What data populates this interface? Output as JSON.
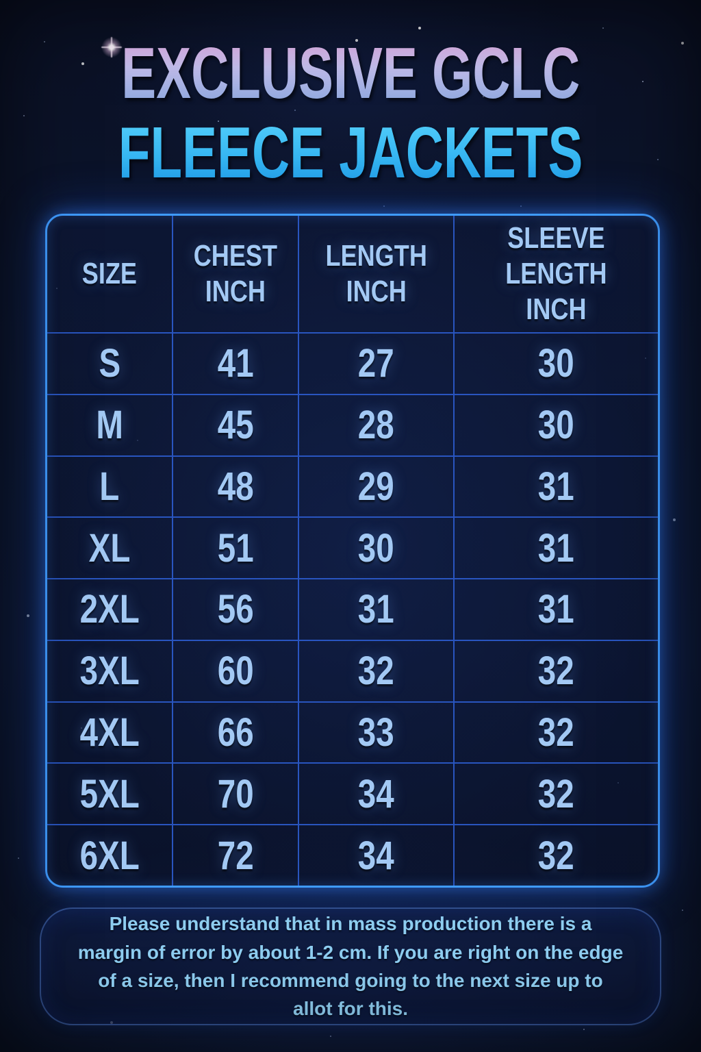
{
  "poster": {
    "title_line1": "EXCLUSIVE GCLC",
    "title_line2": "FLEECE JACKETS"
  },
  "chart_data": {
    "type": "table",
    "title": "EXCLUSIVE GCLC FLEECE JACKETS",
    "columns": [
      "SIZE",
      "CHEST INCH",
      "LENGTH INCH",
      "SLEEVE LENGTH INCH"
    ],
    "rows": [
      [
        "S",
        "41",
        "27",
        "30"
      ],
      [
        "M",
        "45",
        "28",
        "30"
      ],
      [
        "L",
        "48",
        "29",
        "31"
      ],
      [
        "XL",
        "51",
        "30",
        "31"
      ],
      [
        "2XL",
        "56",
        "31",
        "31"
      ],
      [
        "3XL",
        "60",
        "32",
        "32"
      ],
      [
        "4XL",
        "66",
        "33",
        "32"
      ],
      [
        "5XL",
        "70",
        "34",
        "32"
      ],
      [
        "6XL",
        "72",
        "34",
        "32"
      ]
    ]
  },
  "note": {
    "text": "Please understand that in mass production there is a margin of error by about 1-2 cm. If you are right on the edge of a size, then I recommend going to the next size up to allot for this."
  },
  "colors": {
    "background": "#0c142e",
    "table_border": "#3f9bff",
    "grid_line": "#2c5cce",
    "cell_text": "#a3c9f4",
    "title_gradient_top": "#edb4ec",
    "title_gradient_bottom": "#84a3da",
    "subtitle_color": "#36b6f2",
    "note_text": "#8ecdf0"
  }
}
